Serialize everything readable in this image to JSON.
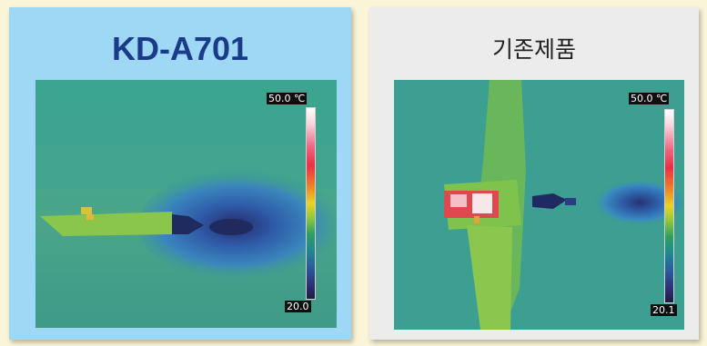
{
  "left_panel": {
    "title": "KD-A701",
    "scale": {
      "max": "50.0",
      "unit": "℃",
      "min": "20.0"
    }
  },
  "right_panel": {
    "title": "기존제품",
    "scale": {
      "max": "50.0",
      "unit": "℃",
      "min": "20.1"
    }
  },
  "colors": {
    "left_panel_bg": "#9fd8f4",
    "right_panel_bg": "#ececec",
    "left_title": "#1a3b8a"
  }
}
